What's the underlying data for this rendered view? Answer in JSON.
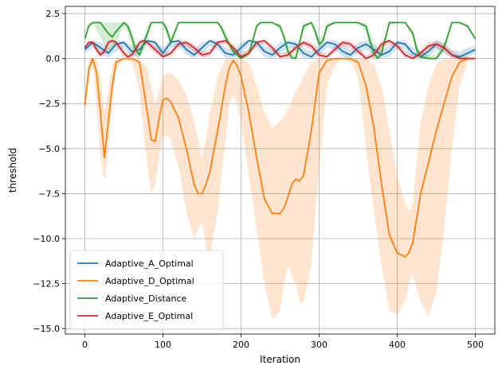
{
  "chart_data": {
    "type": "line",
    "title": "",
    "xlabel": "Iteration",
    "ylabel": "threshold",
    "xlim": [
      -25,
      525
    ],
    "ylim": [
      -15.3,
      2.9
    ],
    "x_ticks": [
      0,
      100,
      200,
      300,
      400,
      500
    ],
    "x_tick_labels": [
      "0",
      "100",
      "200",
      "300",
      "400",
      "500"
    ],
    "y_ticks": [
      2.5,
      0.0,
      -2.5,
      -5.0,
      -7.5,
      -10.0,
      -12.5,
      -15.0
    ],
    "y_tick_labels": [
      "2.5",
      "0.0",
      "−2.5",
      "−5.0",
      "−7.5",
      "−10.0",
      "−12.5",
      "−15.0"
    ],
    "grid": true,
    "legend_position": "lower-left",
    "series": [
      {
        "name": "Adaptive_A_Optimal",
        "color": "#1f77b4",
        "x": [
          0,
          10,
          20,
          30,
          40,
          50,
          60,
          70,
          80,
          90,
          100,
          110,
          120,
          130,
          140,
          150,
          160,
          170,
          180,
          190,
          200,
          210,
          220,
          230,
          240,
          250,
          260,
          270,
          280,
          290,
          300,
          310,
          320,
          330,
          340,
          350,
          360,
          370,
          380,
          390,
          400,
          410,
          420,
          430,
          440,
          450,
          460,
          470,
          480,
          490,
          500
        ],
        "y": [
          0.5,
          0.9,
          0.6,
          0.3,
          0.8,
          0.9,
          0.4,
          0.5,
          1.0,
          0.9,
          0.3,
          0.9,
          1.0,
          0.5,
          0.2,
          0.6,
          1.0,
          0.8,
          0.3,
          0.2,
          0.6,
          1.0,
          0.9,
          0.4,
          0.2,
          0.6,
          0.9,
          0.8,
          0.3,
          0.1,
          0.5,
          0.9,
          0.8,
          0.4,
          0.2,
          0.6,
          0.8,
          0.5,
          0.2,
          0.4,
          0.9,
          0.8,
          0.3,
          0.1,
          0.4,
          0.8,
          0.6,
          0.2,
          0.1,
          0.3,
          0.5
        ],
        "band_lower": [
          0.3,
          0.6,
          0.3,
          0.05,
          0.4,
          0.6,
          0.1,
          0.2,
          0.8,
          0.6,
          0.05,
          0.6,
          0.7,
          0.2,
          0.0,
          0.3,
          0.7,
          0.5,
          0.05,
          0.0,
          0.3,
          0.7,
          0.6,
          0.1,
          0.0,
          0.3,
          0.6,
          0.5,
          0.05,
          0.0,
          0.2,
          0.6,
          0.5,
          0.1,
          0.0,
          0.3,
          0.5,
          0.2,
          0.0,
          0.1,
          0.6,
          0.5,
          0.05,
          0.0,
          0.1,
          0.5,
          0.3,
          0.0,
          0.0,
          0.05,
          0.3
        ],
        "band_upper": [
          0.7,
          1.0,
          0.9,
          0.6,
          1.0,
          1.0,
          0.7,
          0.8,
          1.0,
          1.0,
          0.6,
          1.0,
          1.0,
          0.8,
          0.5,
          0.9,
          1.0,
          1.0,
          0.6,
          0.5,
          0.9,
          1.0,
          1.0,
          0.7,
          0.5,
          0.9,
          1.0,
          1.0,
          0.6,
          0.4,
          0.8,
          1.0,
          1.0,
          0.8,
          0.5,
          0.9,
          1.0,
          0.8,
          0.5,
          0.7,
          1.0,
          1.0,
          0.6,
          0.4,
          0.7,
          1.0,
          0.9,
          0.5,
          0.4,
          0.6,
          0.7
        ]
      },
      {
        "name": "Adaptive_D_Optimal",
        "color": "#ff7f0e",
        "x": [
          0,
          5,
          10,
          15,
          20,
          25,
          30,
          35,
          40,
          50,
          60,
          70,
          80,
          85,
          90,
          95,
          100,
          105,
          110,
          120,
          130,
          140,
          145,
          150,
          155,
          160,
          170,
          180,
          185,
          190,
          195,
          200,
          210,
          220,
          230,
          240,
          250,
          255,
          260,
          265,
          270,
          275,
          280,
          290,
          300,
          310,
          320,
          330,
          340,
          350,
          360,
          370,
          380,
          390,
          400,
          410,
          415,
          420,
          430,
          440,
          450,
          460,
          470,
          480,
          490,
          500
        ],
        "y": [
          -2.6,
          -0.6,
          0.0,
          -0.8,
          -3.0,
          -5.5,
          -3.5,
          -1.5,
          -0.2,
          0.0,
          0.0,
          -0.2,
          -3.0,
          -4.5,
          -4.6,
          -3.3,
          -2.3,
          -2.2,
          -2.4,
          -3.3,
          -5.0,
          -7.0,
          -7.5,
          -7.5,
          -7.0,
          -6.3,
          -4.0,
          -1.5,
          -0.5,
          -0.1,
          -0.4,
          -1.0,
          -3.0,
          -5.5,
          -7.8,
          -8.6,
          -8.6,
          -8.3,
          -7.7,
          -7.0,
          -6.7,
          -6.8,
          -6.5,
          -4.0,
          -0.8,
          -0.1,
          0.0,
          0.0,
          0.0,
          -0.2,
          -1.5,
          -3.8,
          -7.0,
          -9.8,
          -10.8,
          -11.0,
          -10.8,
          -10.2,
          -7.5,
          -5.8,
          -4.0,
          -2.5,
          -1.0,
          -0.2,
          0.0,
          0.0
        ],
        "band_lower": [
          -2.6,
          -1.2,
          -0.3,
          -2.5,
          -5.5,
          -6.8,
          -5.0,
          -2.5,
          -0.6,
          0.0,
          -0.2,
          -1.8,
          -6.0,
          -7.5,
          -7.0,
          -5.5,
          -4.3,
          -4.3,
          -4.5,
          -6.0,
          -8.5,
          -10.0,
          -9.5,
          -9.0,
          -10.5,
          -11.0,
          -8.5,
          -4.5,
          -2.5,
          -2.0,
          -2.5,
          -3.5,
          -6.5,
          -9.5,
          -12.5,
          -14.5,
          -14.0,
          -12.5,
          -11.5,
          -12.0,
          -12.5,
          -13.5,
          -13.5,
          -11.5,
          -6.0,
          -1.5,
          -0.4,
          0.0,
          -0.2,
          -1.0,
          -5.0,
          -8.5,
          -11.5,
          -14.0,
          -14.2,
          -13.5,
          -12.5,
          -12.0,
          -13.5,
          -14.3,
          -13.0,
          -9.5,
          -5.0,
          -1.5,
          -0.2,
          0.0
        ],
        "band_upper": [
          -2.6,
          0.0,
          0.0,
          0.0,
          -1.0,
          -3.0,
          -1.8,
          -0.4,
          0.0,
          0.0,
          0.0,
          0.0,
          -0.5,
          -1.5,
          -2.5,
          -1.8,
          -1.0,
          -0.8,
          -0.8,
          -1.2,
          -2.0,
          -3.5,
          -4.5,
          -5.5,
          -4.5,
          -3.0,
          -1.0,
          0.0,
          0.0,
          0.0,
          0.0,
          0.0,
          -0.2,
          -1.5,
          -3.0,
          -3.8,
          -3.5,
          -3.2,
          -2.8,
          -2.3,
          -1.8,
          -1.5,
          -1.0,
          -0.2,
          0.0,
          0.0,
          0.0,
          0.0,
          0.0,
          0.0,
          0.0,
          -0.3,
          -1.5,
          -4.0,
          -6.5,
          -8.0,
          -8.5,
          -8.0,
          -3.5,
          -1.5,
          -0.3,
          0.0,
          0.0,
          0.0,
          0.0,
          0.0
        ]
      },
      {
        "name": "Adaptive_Distance",
        "color": "#2ca02c",
        "x": [
          0,
          5,
          10,
          20,
          30,
          35,
          40,
          50,
          55,
          60,
          65,
          70,
          80,
          85,
          90,
          95,
          100,
          105,
          110,
          120,
          130,
          135,
          140,
          145,
          150,
          160,
          170,
          175,
          180,
          190,
          200,
          210,
          215,
          220,
          225,
          230,
          240,
          250,
          255,
          260,
          265,
          270,
          280,
          290,
          295,
          300,
          305,
          310,
          320,
          330,
          340,
          350,
          360,
          365,
          370,
          375,
          380,
          390,
          400,
          410,
          420,
          425,
          430,
          440,
          450,
          460,
          470,
          480,
          490,
          500
        ],
        "y": [
          1.1,
          1.8,
          2.0,
          2.0,
          1.4,
          1.2,
          1.5,
          2.0,
          1.8,
          1.2,
          0.5,
          0.2,
          1.4,
          2.0,
          2.0,
          2.0,
          2.0,
          1.6,
          0.9,
          2.0,
          2.0,
          2.0,
          2.0,
          2.0,
          2.0,
          2.0,
          2.0,
          1.7,
          1.2,
          0.4,
          0.0,
          0.3,
          1.0,
          1.8,
          2.0,
          2.0,
          2.0,
          1.8,
          1.2,
          0.4,
          0.05,
          0.0,
          1.8,
          2.0,
          1.5,
          0.8,
          1.0,
          1.8,
          2.0,
          2.0,
          2.0,
          2.0,
          1.8,
          1.0,
          0.3,
          0.0,
          0.3,
          2.0,
          2.0,
          2.0,
          1.4,
          0.5,
          0.1,
          0.0,
          0.0,
          0.6,
          2.0,
          2.0,
          1.8,
          1.1
        ],
        "band_lower": [
          1.1,
          1.7,
          2.0,
          1.2,
          0.3,
          0.6,
          0.9,
          1.8,
          1.4,
          0.7,
          0.1,
          0.0,
          1.0,
          2.0,
          2.0,
          2.0,
          2.0,
          1.3,
          0.6,
          2.0,
          2.0,
          2.0,
          2.0,
          2.0,
          2.0,
          2.0,
          2.0,
          1.5,
          1.0,
          0.2,
          0.0,
          0.1,
          0.8,
          1.7,
          2.0,
          2.0,
          2.0,
          1.6,
          1.0,
          0.2,
          0.0,
          0.0,
          1.5,
          2.0,
          1.3,
          0.6,
          0.8,
          1.6,
          2.0,
          2.0,
          2.0,
          1.9,
          1.5,
          0.5,
          0.0,
          0.0,
          0.1,
          1.8,
          2.0,
          2.0,
          1.2,
          0.3,
          0.0,
          0.0,
          0.0,
          0.4,
          2.0,
          2.0,
          1.7,
          1.1
        ],
        "band_upper": [
          1.1,
          2.0,
          2.0,
          2.0,
          2.0,
          2.0,
          2.0,
          2.0,
          2.0,
          1.6,
          0.9,
          0.5,
          1.8,
          2.0,
          2.0,
          2.0,
          2.0,
          1.9,
          1.2,
          2.0,
          2.0,
          2.0,
          2.0,
          2.0,
          2.0,
          2.0,
          2.0,
          1.9,
          1.5,
          0.7,
          0.2,
          0.5,
          1.2,
          1.9,
          2.0,
          2.0,
          2.0,
          1.9,
          1.4,
          0.7,
          0.3,
          0.2,
          2.0,
          2.0,
          1.8,
          1.1,
          1.3,
          2.0,
          2.0,
          2.0,
          2.0,
          2.0,
          2.0,
          1.5,
          0.8,
          0.4,
          0.7,
          2.0,
          2.0,
          2.0,
          1.6,
          0.8,
          0.4,
          0.2,
          0.2,
          0.9,
          2.0,
          2.0,
          1.9,
          1.1
        ]
      },
      {
        "name": "Adaptive_E_Optimal",
        "color": "#d62728",
        "x": [
          0,
          5,
          10,
          15,
          20,
          25,
          30,
          35,
          40,
          45,
          50,
          55,
          60,
          65,
          70,
          75,
          80,
          90,
          100,
          110,
          120,
          130,
          140,
          150,
          160,
          170,
          180,
          190,
          200,
          210,
          220,
          230,
          240,
          250,
          260,
          270,
          280,
          290,
          300,
          310,
          320,
          330,
          340,
          350,
          360,
          370,
          380,
          390,
          400,
          410,
          420,
          430,
          440,
          450,
          460,
          470,
          480,
          490,
          500
        ],
        "y": [
          0.6,
          0.9,
          0.9,
          0.5,
          0.2,
          0.4,
          0.9,
          1.0,
          0.9,
          0.6,
          0.3,
          0.1,
          0.2,
          0.5,
          0.9,
          1.0,
          0.9,
          0.5,
          0.1,
          0.3,
          0.8,
          0.9,
          0.6,
          0.2,
          0.3,
          0.9,
          1.0,
          0.6,
          0.1,
          0.3,
          0.9,
          1.0,
          0.6,
          0.1,
          0.2,
          0.6,
          0.9,
          0.7,
          0.2,
          0.1,
          0.5,
          0.9,
          0.8,
          0.4,
          0.0,
          0.2,
          0.8,
          1.0,
          0.7,
          0.2,
          0.0,
          0.3,
          0.7,
          0.8,
          0.6,
          0.2,
          0.0,
          0.0,
          0.0
        ],
        "band_lower": [
          0.5,
          0.8,
          0.7,
          0.3,
          0.1,
          0.2,
          0.7,
          0.9,
          0.7,
          0.4,
          0.1,
          0.0,
          0.05,
          0.3,
          0.7,
          0.9,
          0.7,
          0.3,
          0.0,
          0.15,
          0.6,
          0.7,
          0.4,
          0.05,
          0.15,
          0.7,
          0.8,
          0.4,
          0.0,
          0.15,
          0.7,
          0.8,
          0.4,
          0.0,
          0.05,
          0.4,
          0.7,
          0.5,
          0.05,
          0.0,
          0.3,
          0.7,
          0.6,
          0.2,
          0.0,
          0.05,
          0.6,
          0.8,
          0.5,
          0.05,
          0.0,
          0.1,
          0.5,
          0.6,
          0.4,
          0.05,
          0.0,
          0.0,
          0.0
        ],
        "band_upper": [
          0.7,
          1.0,
          1.0,
          0.7,
          0.4,
          0.6,
          1.0,
          1.0,
          1.0,
          0.8,
          0.5,
          0.3,
          0.4,
          0.7,
          1.0,
          1.0,
          1.0,
          0.7,
          0.3,
          0.5,
          1.0,
          1.0,
          0.8,
          0.4,
          0.5,
          1.0,
          1.0,
          0.8,
          0.3,
          0.5,
          1.0,
          1.0,
          0.8,
          0.3,
          0.4,
          0.8,
          1.0,
          0.9,
          0.4,
          0.3,
          0.7,
          1.0,
          1.0,
          0.6,
          0.2,
          0.4,
          1.0,
          1.0,
          0.9,
          0.4,
          0.2,
          0.5,
          0.9,
          1.0,
          0.8,
          0.4,
          0.2,
          0.1,
          0.0
        ]
      }
    ]
  }
}
